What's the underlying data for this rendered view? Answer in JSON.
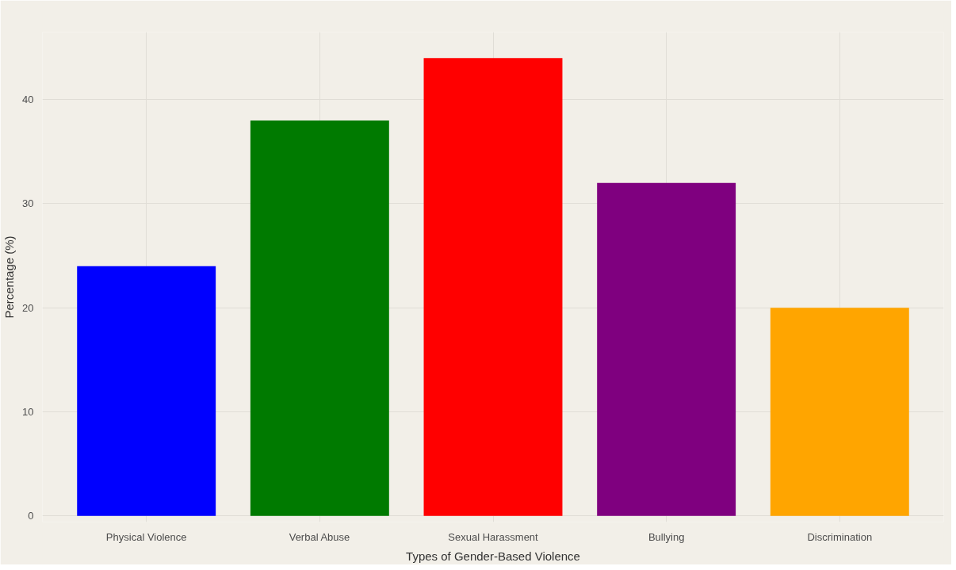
{
  "chart_data": {
    "type": "bar",
    "xlabel": "Types of Gender-Based Violence",
    "ylabel": "Percentage (%)",
    "categories": [
      "Physical Violence",
      "Verbal Abuse",
      "Sexual Harassment",
      "Bullying",
      "Discrimination"
    ],
    "values": [
      24,
      38,
      44,
      32,
      20
    ],
    "colors": [
      "#0000ff",
      "#007a00",
      "#ff0000",
      "#7f007f",
      "#ffa500"
    ],
    "ylim": [
      -0.6,
      46.5
    ],
    "yticks": [
      0,
      10,
      20,
      30,
      40
    ],
    "grid": true
  }
}
